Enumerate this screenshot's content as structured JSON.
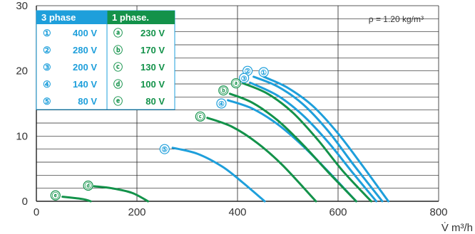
{
  "chart_data": {
    "type": "line",
    "xlim": [
      0,
      800
    ],
    "ylim": [
      0,
      30
    ],
    "x_ticks": [
      "0",
      "200",
      "400",
      "600",
      "800"
    ],
    "y_ticks": [
      "0",
      "10",
      "20",
      "30"
    ],
    "xlabel": "V̇ m³/h",
    "ylabel": "",
    "grid": true,
    "annotation": "ρ = 1.20 kg/m³",
    "legend": {
      "placement": "top-left",
      "groups": [
        {
          "title": "3 phase",
          "color": "#1e9fdb",
          "entries": [
            {
              "marker": "①",
              "label": "400 V"
            },
            {
              "marker": "②",
              "label": "280 V"
            },
            {
              "marker": "③",
              "label": "200 V"
            },
            {
              "marker": "④",
              "label": "140 V"
            },
            {
              "marker": "⑤",
              "label": "80 V"
            }
          ]
        },
        {
          "title": "1 phase.",
          "color": "#13924a",
          "entries": [
            {
              "marker": "ⓐ",
              "label": "230 V"
            },
            {
              "marker": "ⓑ",
              "label": "170 V"
            },
            {
              "marker": "ⓒ",
              "label": "130 V"
            },
            {
              "marker": "ⓓ",
              "label": "100 V"
            },
            {
              "marker": "ⓔ",
              "label": "80 V"
            }
          ]
        }
      ]
    },
    "series": [
      {
        "marker": "①",
        "group": 0,
        "color": "#1e9fdb",
        "label_at": [
          452,
          19.8
        ],
        "x": [
          452,
          500,
          550,
          600,
          650,
          700
        ],
        "y": [
          19.1,
          17.4,
          14.6,
          10.4,
          5.3,
          0
        ]
      },
      {
        "marker": "②",
        "group": 0,
        "color": "#1e9fdb",
        "label_at": [
          420,
          20.0
        ],
        "x": [
          432,
          480,
          530,
          580,
          630,
          688
        ],
        "y": [
          19.1,
          17.6,
          14.9,
          10.8,
          5.7,
          0
        ]
      },
      {
        "marker": "③",
        "group": 0,
        "color": "#1e9fdb",
        "label_at": [
          413,
          18.9
        ],
        "x": [
          425,
          480,
          530,
          580,
          630,
          676
        ],
        "y": [
          18.2,
          16.2,
          13.2,
          9.1,
          4.3,
          0
        ]
      },
      {
        "marker": "④",
        "group": 0,
        "color": "#1e9fdb",
        "label_at": [
          368,
          15.0
        ],
        "x": [
          381,
          430,
          480,
          530,
          580,
          636
        ],
        "y": [
          15.5,
          14.2,
          11.8,
          8.5,
          4.6,
          0
        ]
      },
      {
        "marker": "⑤",
        "group": 0,
        "color": "#1e9fdb",
        "label_at": [
          255,
          8.0
        ],
        "x": [
          271,
          320,
          370,
          410,
          454
        ],
        "y": [
          8.2,
          7.3,
          5.3,
          2.9,
          0
        ]
      },
      {
        "marker": "ⓐ",
        "group": 1,
        "color": "#13924a",
        "label_at": [
          397,
          18.1
        ],
        "x": [
          411,
          460,
          510,
          560,
          610,
          666
        ],
        "y": [
          18.1,
          16.5,
          13.6,
          9.4,
          4.6,
          0
        ]
      },
      {
        "marker": "ⓑ",
        "group": 1,
        "color": "#13924a",
        "label_at": [
          372,
          17.0
        ],
        "x": [
          385,
          430,
          480,
          530,
          580,
          636
        ],
        "y": [
          16.5,
          15.1,
          12.4,
          8.7,
          4.5,
          0
        ]
      },
      {
        "marker": "ⓒ",
        "group": 1,
        "color": "#13924a",
        "label_at": [
          326,
          13.0
        ],
        "x": [
          340,
          390,
          440,
          490,
          556
        ],
        "y": [
          12.8,
          11.4,
          8.9,
          5.5,
          0
        ]
      },
      {
        "marker": "ⓓ",
        "group": 1,
        "color": "#13924a",
        "label_at": [
          103,
          2.4
        ],
        "x": [
          115,
          150,
          190,
          222
        ],
        "y": [
          2.3,
          2.0,
          1.3,
          0
        ]
      },
      {
        "marker": "ⓔ",
        "group": 1,
        "color": "#13924a",
        "label_at": [
          38,
          0.9
        ],
        "x": [
          52,
          75,
          95,
          108
        ],
        "y": [
          0.7,
          0.5,
          0.3,
          0
        ]
      }
    ]
  }
}
